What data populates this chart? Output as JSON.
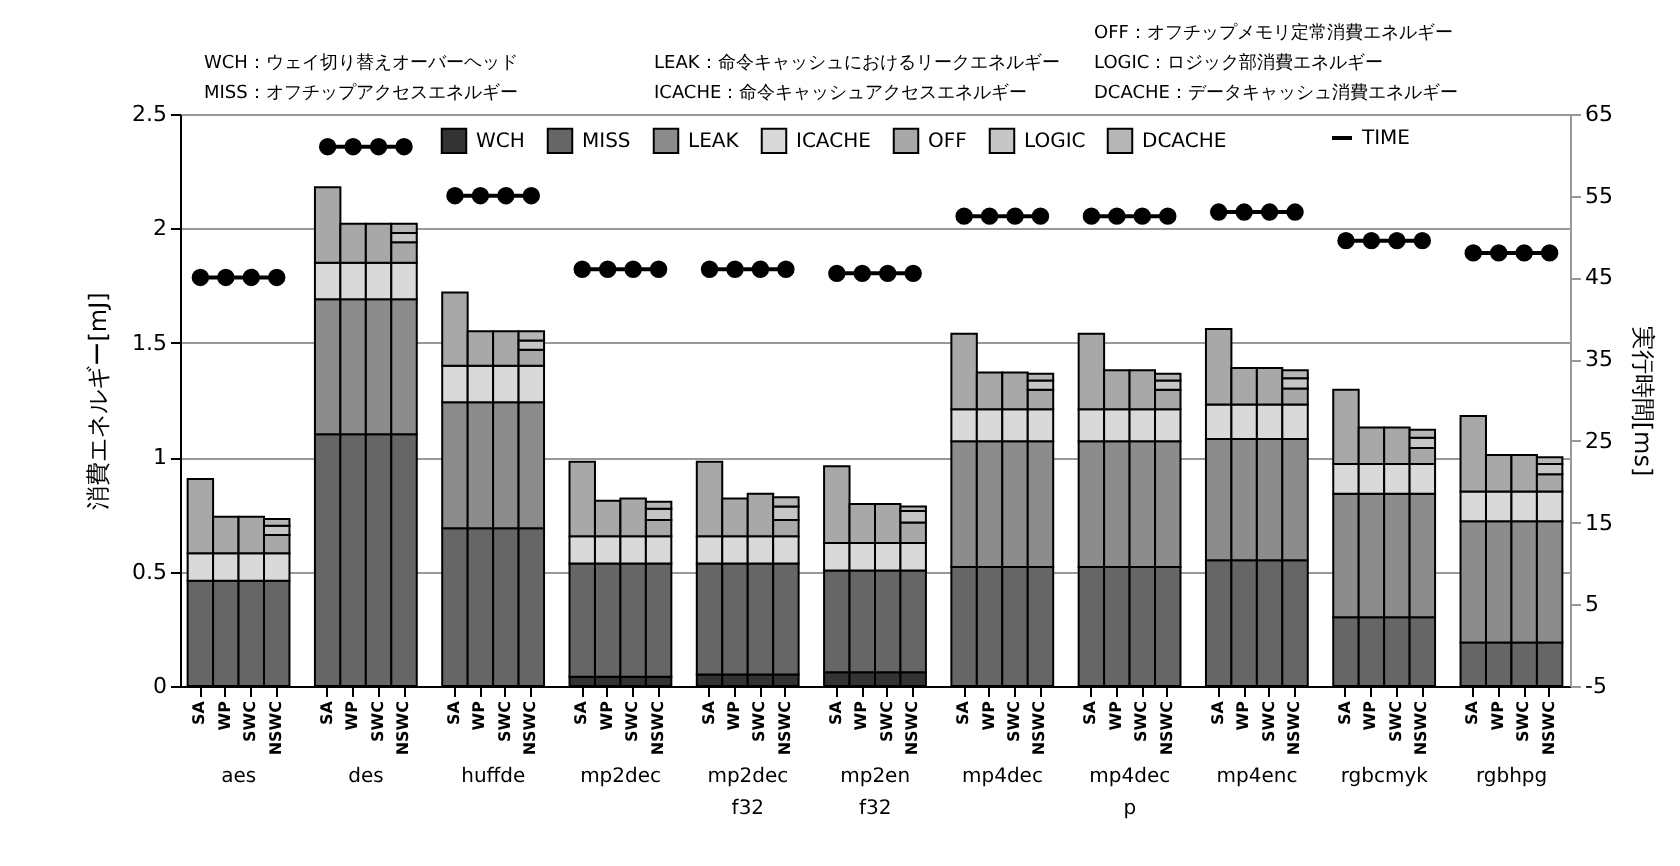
{
  "chart_data": {
    "type": "bar",
    "stacked": true,
    "categories": [
      "SA",
      "WP",
      "SWC",
      "NSWC",
      "SA",
      "WP",
      "SWC",
      "NSWC",
      "SA",
      "WP",
      "SWC",
      "NSWC",
      "SA",
      "WP",
      "SWC",
      "NSWC",
      "SA",
      "WP",
      "SWC",
      "NSWC",
      "SA",
      "WP",
      "SWC",
      "NSWC",
      "SA",
      "WP",
      "SWC",
      "NSWC",
      "SA",
      "WP",
      "SWC",
      "NSWC",
      "SA",
      "WP",
      "SWC",
      "NSWC",
      "SA",
      "WP",
      "SWC",
      "NSWC",
      "SA",
      "WP",
      "SWC",
      "NSWC"
    ],
    "ylabel": "消費エネルギー[mJ]",
    "y2label": "実行時間[ms]",
    "ylim": [
      0,
      2.5
    ],
    "yticks": [
      0,
      0.5,
      1,
      1.5,
      2,
      2.5
    ],
    "y2lim": [
      -5,
      65
    ],
    "y2ticks": [
      -5,
      5,
      15,
      25,
      35,
      45,
      55,
      65
    ],
    "grid": "y",
    "legend": "top",
    "marker": "circle",
    "series": [
      {
        "name": "WCH",
        "color": "#333333",
        "values": [
          null,
          null,
          null,
          null,
          null,
          null,
          null,
          null,
          null,
          null,
          null,
          null,
          0.04,
          0.04,
          0.04,
          0.04,
          0.05,
          0.05,
          0.05,
          0.05,
          0.06,
          0.06,
          0.06,
          0.06,
          null,
          null,
          null,
          null,
          null,
          null,
          null,
          null,
          null,
          null,
          null,
          null,
          null,
          null,
          null,
          null,
          null,
          null,
          null,
          null
        ]
      },
      {
        "name": "MISS",
        "color": "#666666",
        "values": [
          0.46,
          0.46,
          0.46,
          0.46,
          1.1,
          1.1,
          1.1,
          1.1,
          0.69,
          0.69,
          0.69,
          0.69,
          0.495,
          0.495,
          0.495,
          0.495,
          0.485,
          0.485,
          0.485,
          0.485,
          0.445,
          0.445,
          0.445,
          0.445,
          0.52,
          0.52,
          0.52,
          0.52,
          0.52,
          0.52,
          0.52,
          0.52,
          0.55,
          0.55,
          0.55,
          0.55,
          0.3,
          0.3,
          0.3,
          0.3,
          0.19,
          0.19,
          0.19,
          0.19
        ]
      },
      {
        "name": "LEAK",
        "color": "#8c8c8c",
        "values": [
          null,
          null,
          null,
          null,
          0.59,
          0.59,
          0.59,
          0.59,
          0.55,
          0.55,
          0.55,
          0.55,
          null,
          null,
          null,
          null,
          null,
          null,
          null,
          null,
          null,
          null,
          null,
          null,
          0.55,
          0.55,
          0.55,
          0.55,
          0.55,
          0.55,
          0.55,
          0.55,
          0.53,
          0.53,
          0.53,
          0.53,
          0.54,
          0.54,
          0.54,
          0.54,
          0.53,
          0.53,
          0.53,
          0.53
        ]
      },
      {
        "name": "ICACHE",
        "color": "#d9d9d9",
        "values": [
          0.12,
          0.12,
          0.12,
          0.12,
          0.16,
          0.16,
          0.16,
          0.16,
          0.16,
          0.16,
          0.16,
          0.16,
          0.12,
          0.12,
          0.12,
          0.12,
          0.12,
          0.12,
          0.12,
          0.12,
          0.12,
          0.12,
          0.12,
          0.12,
          0.14,
          0.14,
          0.14,
          0.14,
          0.14,
          0.14,
          0.14,
          0.14,
          0.15,
          0.15,
          0.15,
          0.15,
          0.13,
          0.13,
          0.13,
          0.13,
          0.13,
          0.13,
          0.13,
          0.13
        ]
      },
      {
        "name": "OFF",
        "color": "#a8a8a8",
        "values": [
          0.325,
          0.16,
          0.16,
          0.08,
          0.33,
          0.17,
          0.17,
          0.09,
          0.32,
          0.15,
          0.15,
          0.07,
          0.325,
          0.155,
          0.165,
          0.07,
          0.325,
          0.165,
          0.185,
          0.07,
          0.335,
          0.17,
          0.17,
          0.09,
          0.33,
          0.16,
          0.16,
          0.085,
          0.33,
          0.17,
          0.17,
          0.085,
          0.33,
          0.16,
          0.16,
          0.07,
          0.325,
          0.16,
          0.16,
          0.07,
          0.33,
          0.16,
          0.16,
          0.075
        ]
      },
      {
        "name": "LOGIC",
        "color": "#c6c6c6",
        "values": [
          null,
          null,
          null,
          0.04,
          null,
          null,
          null,
          0.04,
          null,
          null,
          null,
          0.04,
          null,
          null,
          null,
          0.05,
          null,
          null,
          null,
          0.06,
          null,
          null,
          null,
          0.05,
          null,
          null,
          null,
          0.04,
          null,
          null,
          null,
          0.04,
          null,
          null,
          null,
          0.045,
          null,
          null,
          null,
          0.045,
          null,
          null,
          null,
          0.045
        ]
      },
      {
        "name": "DCACHE",
        "color": "#b6b6b6",
        "values": [
          null,
          null,
          null,
          0.03,
          null,
          null,
          null,
          0.04,
          null,
          null,
          null,
          0.04,
          null,
          null,
          null,
          0.03,
          null,
          null,
          null,
          0.04,
          null,
          null,
          null,
          0.02,
          null,
          null,
          null,
          0.03,
          null,
          null,
          null,
          0.03,
          null,
          null,
          null,
          0.035,
          null,
          null,
          null,
          0.035,
          null,
          null,
          null,
          0.03
        ]
      },
      {
        "name": "TIME",
        "type": "line",
        "axis": "y2",
        "color": "#000000",
        "values": [
          45,
          45,
          45,
          45,
          61,
          61,
          61,
          61,
          55,
          55,
          55,
          55,
          46,
          46,
          46,
          46,
          46,
          46,
          46,
          46,
          45.5,
          45.5,
          45.5,
          45.5,
          52.5,
          52.5,
          52.5,
          52.5,
          52.5,
          52.5,
          52.5,
          52.5,
          53,
          53,
          53,
          53,
          49.5,
          49.5,
          49.5,
          49.5,
          48,
          48,
          48,
          48
        ]
      }
    ],
    "annotations": [
      "WCH：ウェイ切り替えオーバーヘッド",
      "MISS：オフチップアクセスエネルギー",
      "LEAK：命令キャッシュにおけるリークエネルギー",
      "ICACHE：命令キャッシュアクセスエネルギー",
      "OFF：オフチップメモリ定常消費エネルギー",
      "LOGIC：ロジック部消費エネルギー",
      "DCACHE：データキャッシュ消費エネルギー",
      "aes",
      "des",
      "huffde",
      "mp2dec",
      "mp2dec f32",
      "mp2en f32",
      "mp4dec",
      "mp4dec p",
      "mp4enc",
      "rgbcmyk",
      "rgbhpg"
    ]
  }
}
